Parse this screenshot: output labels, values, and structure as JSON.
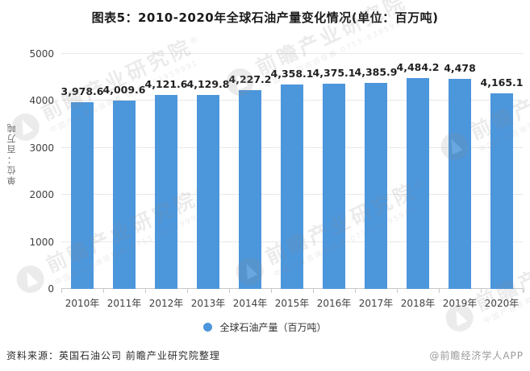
{
  "title": "图表5：2010-2020年全球石油产量变化情况(单位：百万吨)",
  "chart_data": {
    "type": "bar",
    "title": "图表5：2010-2020年全球石油产量变化情况(单位：百万吨)",
    "categories": [
      "2010年",
      "2011年",
      "2012年",
      "2013年",
      "2014年",
      "2015年",
      "2016年",
      "2017年",
      "2018年",
      "2019年",
      "2020年"
    ],
    "values": [
      3978.6,
      4009.6,
      4121.6,
      4129.8,
      4227.2,
      4358.1,
      4375.1,
      4385.9,
      4484.2,
      4478,
      4165.1
    ],
    "value_labels": [
      "3,978.6",
      "4,009.6",
      "4,121.6",
      "4,129.8",
      "4,227.2",
      "4,358.1",
      "4,375.1",
      "4,385.9",
      "4,484.2",
      "4,478",
      "4,165.1"
    ],
    "series_name": "全球石油产量（百万吨）",
    "xlabel": "",
    "ylabel": "单位：百万吨",
    "ylim": [
      0,
      5000
    ],
    "yticks": [
      0,
      1000,
      2000,
      3000,
      4000,
      5000
    ],
    "grid": true,
    "legend_position": "bottom"
  },
  "y_axis": {
    "unit_label": "单位：百万吨"
  },
  "legend": {
    "label": "全球石油产量（百万吨）"
  },
  "footer": {
    "source": "资料来源：英国石油公司 前瞻产业研究院整理",
    "credit": "@前瞻经济学人APP"
  },
  "watermark": {
    "text": "前瞻产业研究院",
    "registered": "®",
    "subtext": "中国产业咨询领导者 0755-83959991"
  },
  "colors": {
    "bar": "#4C96DC",
    "grid": "#e8e8e8",
    "axis": "#c8c8c8",
    "title": "#1a1a1a",
    "tick_label": "#404040",
    "value_label": "#1f1f1f",
    "credit": "#999999",
    "watermark": "#8a8a8a"
  }
}
